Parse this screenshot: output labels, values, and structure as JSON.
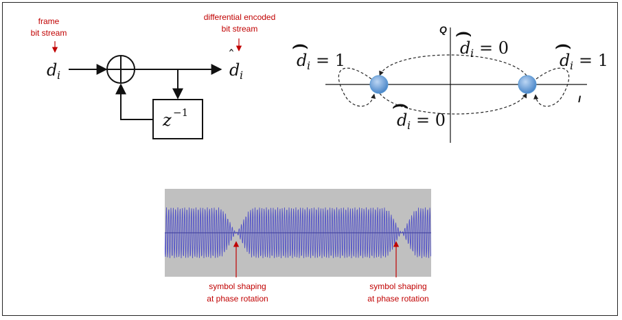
{
  "block_diagram": {
    "input_annotation_line1": "frame",
    "input_annotation_line2": "bit stream",
    "output_annotation_line1": "differential encoded",
    "output_annotation_line2": "bit stream",
    "input_symbol": "d",
    "input_subscript": "i",
    "output_symbol": "d",
    "output_subscript": "i",
    "delay_base": "z",
    "delay_exponent": "−1"
  },
  "constellation": {
    "axis_q": "Q",
    "axis_i": "I",
    "label_top_left": "= 1",
    "label_top_center": "= 0",
    "label_top_right": "= 1",
    "label_bottom_center": "= 0",
    "symbol": "d",
    "subscript": "i",
    "point_color": "#5b9bd5"
  },
  "waveform": {
    "annotation_left_line1": "symbol shaping",
    "annotation_left_line2": "at phase rotation",
    "annotation_right_line1": "symbol shaping",
    "annotation_right_line2": "at phase rotation",
    "background_color": "#c0c0c0",
    "signal_color": "#5050c8"
  }
}
